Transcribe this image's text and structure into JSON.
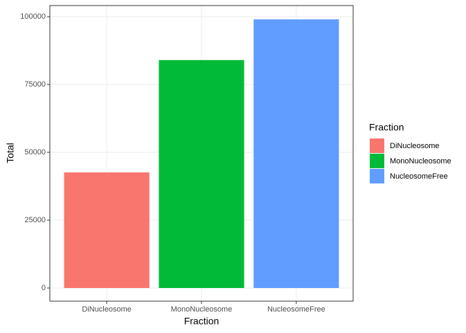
{
  "chart_data": {
    "type": "bar",
    "x_label": "Fraction",
    "y_label": "Total",
    "categories": [
      "DiNucleosome",
      "MonoNucleosome",
      "NucleosomeFree"
    ],
    "values": [
      42600,
      84000,
      99000
    ],
    "colors": [
      "#F8766D",
      "#00BA38",
      "#619CFF"
    ],
    "ylim": [
      -4850,
      104100
    ],
    "yticks": [
      0,
      25000,
      50000,
      75000,
      100000
    ],
    "grid": true,
    "legend": {
      "title": "Fraction",
      "position": "right"
    }
  }
}
